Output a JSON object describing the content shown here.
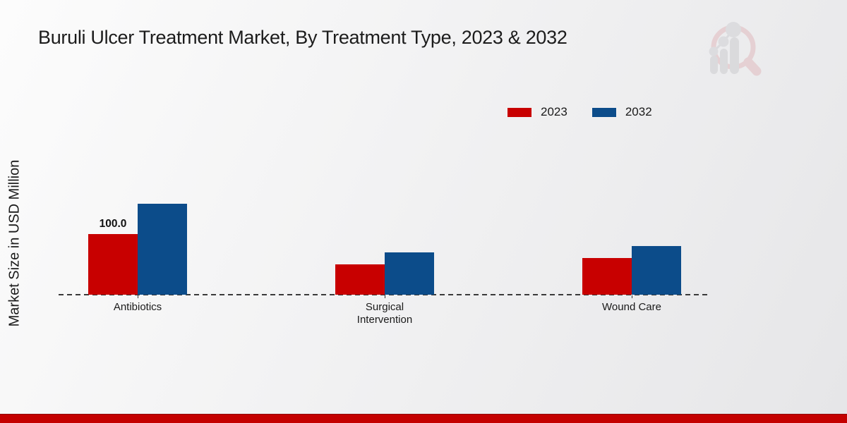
{
  "title": "Buruli Ulcer Treatment Market, By Treatment Type, 2023 & 2032",
  "ylabel": "Market Size in USD Million",
  "colors": {
    "series_2023": "#c80000",
    "series_2032": "#0c4c8a",
    "footer_band": "#c40000",
    "text": "#1a1a1a",
    "baseline": "#3a3a3a",
    "logo_ring_pink": "#e0b6ba",
    "logo_gray": "#c9c9cd"
  },
  "watermark_icon": "magnifier-trend-bars-logo",
  "chart_data": {
    "type": "bar",
    "categories": [
      "Antibiotics",
      "Surgical Intervention",
      "Wound Care"
    ],
    "series": [
      {
        "name": "2023",
        "color": "#c80000",
        "values": [
          100.0,
          50,
          60
        ]
      },
      {
        "name": "2032",
        "color": "#0c4c8a",
        "values": [
          150,
          70,
          80
        ]
      }
    ],
    "annotations": [
      {
        "category_index": 0,
        "series_index": 0,
        "text": "100.0"
      }
    ],
    "xlabel": "",
    "ylabel": "Market Size in USD Million",
    "ylim": [
      0,
      160
    ],
    "grid": false,
    "axis_style": "dashed-baseline-only",
    "legend_position": "upper-right",
    "legend_entries": [
      "2023",
      "2032"
    ]
  }
}
